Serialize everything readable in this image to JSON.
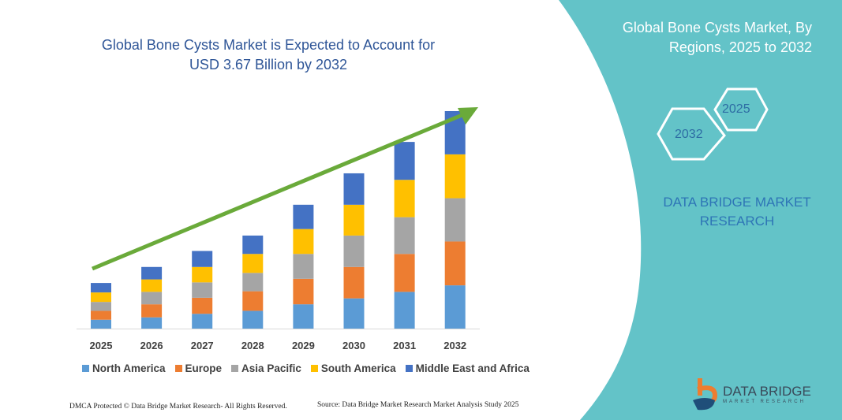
{
  "colors": {
    "teal_panel": "#63c3c8",
    "arrow": "#6aaa3a",
    "title": "#2e5597"
  },
  "header": {
    "title": "Global Bone Cysts Market is Expected to Account for USD 3.67 Billion by 2032"
  },
  "side_panel": {
    "title": "Global Bone Cysts Market, By Regions, 2025 to 2032",
    "hex_start": "2025",
    "hex_end": "2032",
    "brand": "DATA BRIDGE MARKET RESEARCH",
    "logo_text": "DATA BRIDGE",
    "logo_sub": "MARKET RESEARCH"
  },
  "chart_data": {
    "type": "bar",
    "stacked": true,
    "title": "Global Bone Cysts Market is Expected to Account for USD 3.67 Billion by 2032",
    "categories": [
      "2025",
      "2026",
      "2027",
      "2028",
      "2029",
      "2030",
      "2031",
      "2032"
    ],
    "series": [
      {
        "name": "North America",
        "color": "#5b9bd5",
        "values": [
          0.15,
          0.19,
          0.25,
          0.3,
          0.41,
          0.51,
          0.62,
          0.73
        ]
      },
      {
        "name": "Europe",
        "color": "#ed7d31",
        "values": [
          0.15,
          0.22,
          0.27,
          0.33,
          0.43,
          0.53,
          0.64,
          0.74
        ]
      },
      {
        "name": "Asia Pacific",
        "color": "#a5a5a5",
        "values": [
          0.15,
          0.21,
          0.26,
          0.31,
          0.42,
          0.53,
          0.62,
          0.73
        ]
      },
      {
        "name": "South America",
        "color": "#ffc000",
        "values": [
          0.16,
          0.21,
          0.26,
          0.32,
          0.42,
          0.52,
          0.63,
          0.74
        ]
      },
      {
        "name": "Middle East and Africa",
        "color": "#4472c4",
        "values": [
          0.16,
          0.21,
          0.27,
          0.31,
          0.41,
          0.53,
          0.64,
          0.73
        ]
      }
    ],
    "ylim": [
      0,
      3.67
    ],
    "grid": false,
    "legend": "bottom",
    "trend_arrow": true
  },
  "footer": {
    "dmca": "DMCA Protected © Data Bridge Market Research- All Rights Reserved.",
    "source": "Source: Data Bridge Market Research Market Analysis Study 2025"
  }
}
